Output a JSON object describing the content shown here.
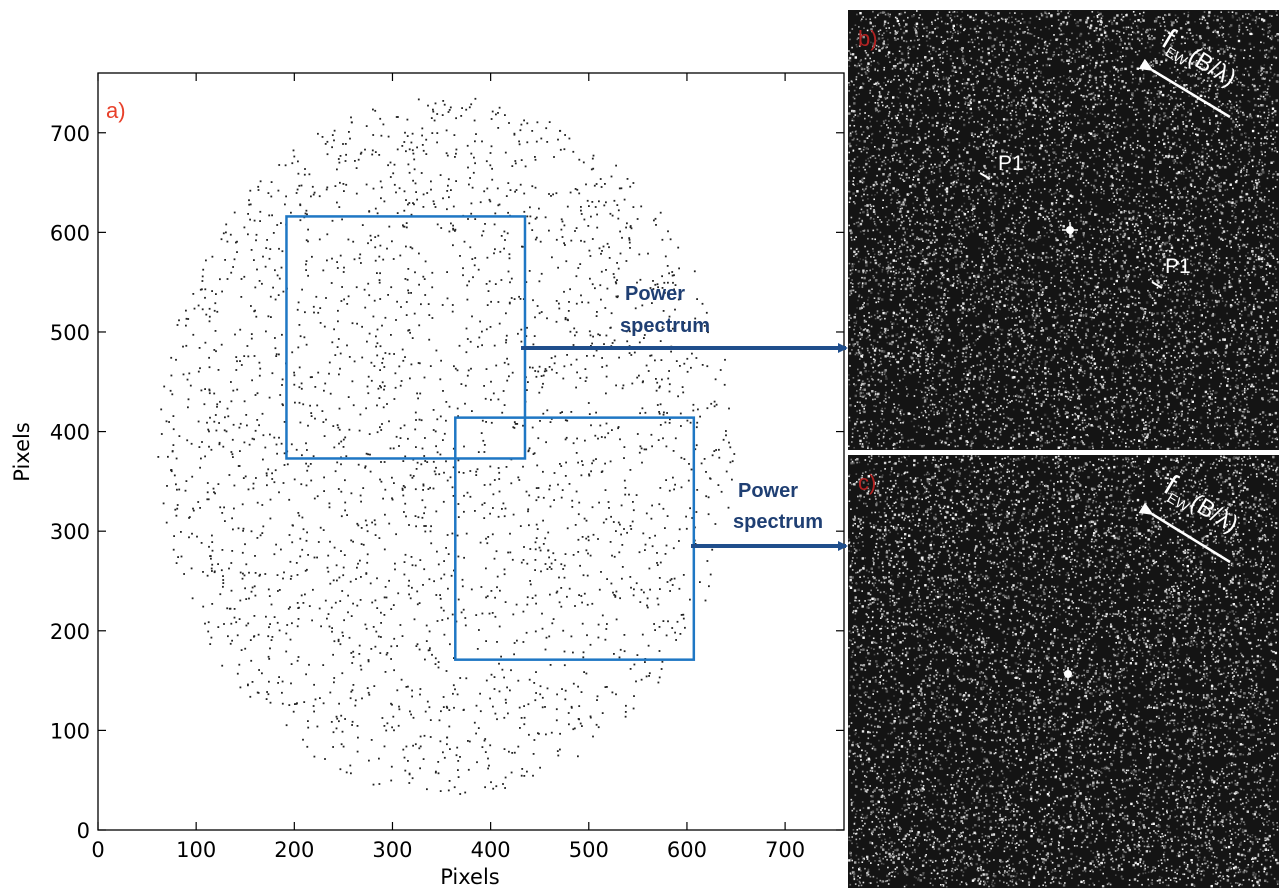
{
  "panels": {
    "a": "a)",
    "b": "b)",
    "c": "c)"
  },
  "colors": {
    "box": "#1f77c4",
    "arrow": "#1f4e8c",
    "annotation_text": "#1f3f73",
    "panel_letter": "#e8402a",
    "panel_letter_dark": "#b22222",
    "points": "#222222"
  },
  "chart_data": {
    "type": "scatter",
    "xlabel": "Pixels",
    "ylabel": "Pixels",
    "xlim": [
      0,
      760
    ],
    "ylim": [
      0,
      760
    ],
    "xticks": [
      0,
      100,
      200,
      300,
      400,
      500,
      600,
      700
    ],
    "yticks": [
      0,
      100,
      200,
      300,
      400,
      500,
      600,
      700
    ],
    "grid": false,
    "point_distribution": {
      "description_of_data": "pseudo-random point cloud",
      "center": [
        355,
        385
      ],
      "radius": 300,
      "count": 2600
    },
    "regions": [
      {
        "x0": 192,
        "x1": 435,
        "y0": 373,
        "y1": 616
      },
      {
        "x0": 364,
        "x1": 607,
        "y0": 171,
        "y1": 414
      }
    ],
    "annotations": [
      {
        "text_line1": "Power",
        "text_line2": "spectrum",
        "target_panel": "b"
      },
      {
        "text_line1": "Power",
        "text_line2": "spectrum",
        "target_panel": "c"
      }
    ]
  },
  "spectra": {
    "b": {
      "direction_label": "f",
      "direction_sub": "EW",
      "direction_units": "(B/λ)",
      "peaks": [
        "P1",
        "P1"
      ]
    },
    "c": {
      "direction_label": "f",
      "direction_sub": "EW",
      "direction_units": "(B/λ)"
    }
  }
}
